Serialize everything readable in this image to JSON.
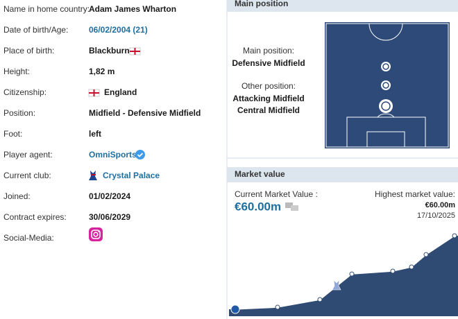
{
  "profile": {
    "rows": [
      {
        "label": "Name in home country:",
        "value": "Adam James Wharton"
      },
      {
        "label": "Date of birth/Age:",
        "value": "06/02/2004 (21)"
      },
      {
        "label": "Place of birth:",
        "value": "Blackburn"
      },
      {
        "label": "Height:",
        "value": "1,82 m"
      },
      {
        "label": "Citizenship:",
        "value": "England"
      },
      {
        "label": "Position:",
        "value": "Midfield - Defensive Midfield"
      },
      {
        "label": "Foot:",
        "value": "left"
      },
      {
        "label": "Player agent:",
        "value": "OmniSports"
      },
      {
        "label": "Current club:",
        "value": "Crystal Palace"
      },
      {
        "label": "Joined:",
        "value": "01/02/2024"
      },
      {
        "label": "Contract expires:",
        "value": "30/06/2029"
      },
      {
        "label": "Social-Media:"
      }
    ]
  },
  "main_position": {
    "title": "Main position",
    "main_label": "Main position:",
    "main": "Defensive Midfield",
    "other_label": "Other position:",
    "other": [
      "Attacking Midfield",
      "Central Midfield"
    ]
  },
  "market_value": {
    "title": "Market value",
    "current_label": "Current Market Value :",
    "current": "€60.00m",
    "highest_label": "Highest market value:",
    "highest": "€60.00m",
    "highest_date": "17/10/2025",
    "chart": {
      "type": "area",
      "values": [
        3.2,
        4.8,
        10.7,
        30.5,
        32.7,
        35.9,
        45.5,
        60
      ]
    }
  }
}
